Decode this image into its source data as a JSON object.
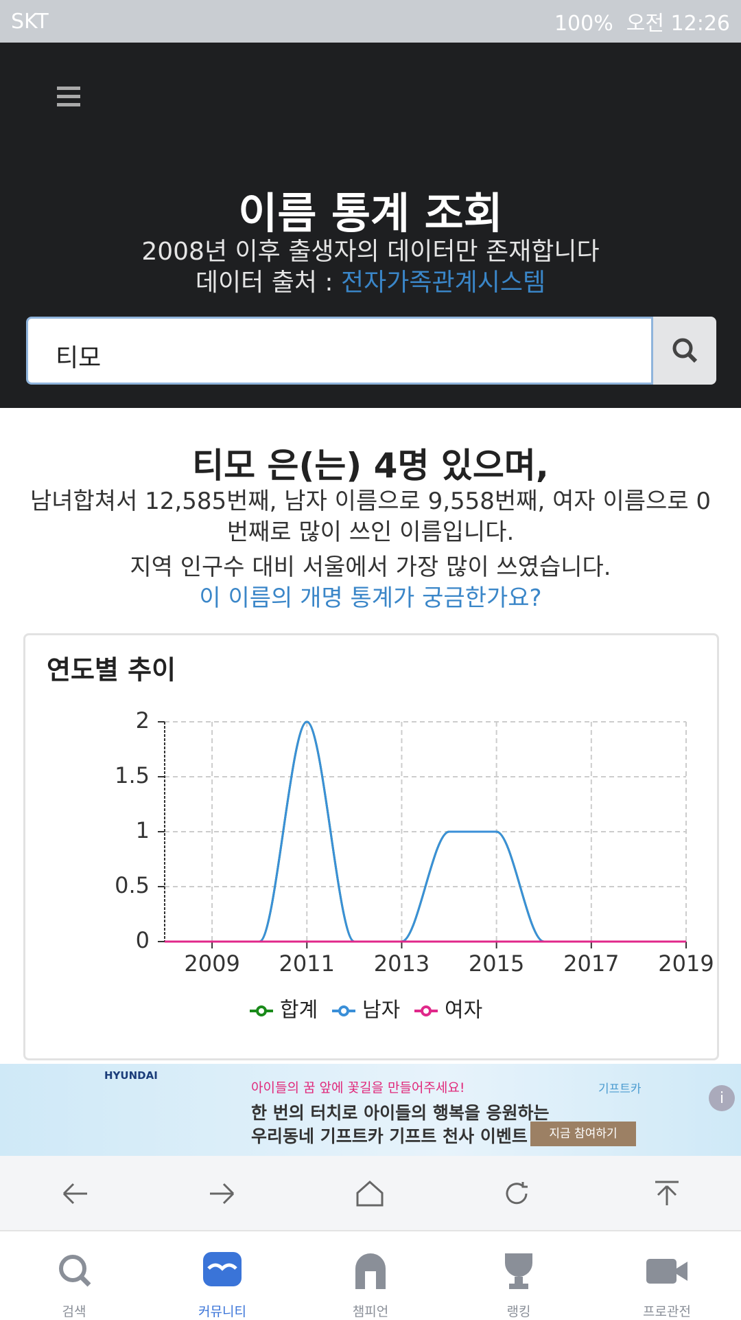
{
  "status_bar": {
    "carrier": "SKT",
    "battery": "100%",
    "time": "오전 12:26"
  },
  "header": {
    "title": "이름 통계 조회",
    "subtitle": "2008년 이후 출생자의 데이터만 존재합니다",
    "source_label": "데이터 출처 :",
    "source_link": "전자가족관계시스템"
  },
  "search": {
    "value": "티모"
  },
  "result": {
    "headline": "티모 은(는) 4명 있으며,",
    "rank_text": "남녀합쳐서 12,585번째, 남자 이름으로 9,558번째, 여자 이름으로 0번째로 많이 쓰인 이름입니다.",
    "region_text": "지역 인구수 대비 서울에서 가장 많이 쓰였습니다.",
    "link": "이 이름의 개명 통계가 궁금한가요?"
  },
  "chart_data": {
    "type": "line",
    "title": "연도별 추이",
    "x": [
      2008,
      2009,
      2010,
      2011,
      2012,
      2013,
      2014,
      2015,
      2016,
      2017,
      2018,
      2019
    ],
    "series": [
      {
        "name": "합계",
        "color": "#1a8a1a",
        "values": [
          0,
          0,
          0,
          2,
          0,
          0,
          1,
          1,
          0,
          0,
          0,
          0
        ]
      },
      {
        "name": "남자",
        "color": "#3a8fd8",
        "values": [
          0,
          0,
          0,
          2,
          0,
          0,
          1,
          1,
          0,
          0,
          0,
          0
        ]
      },
      {
        "name": "여자",
        "color": "#e0288a",
        "values": [
          0,
          0,
          0,
          0,
          0,
          0,
          0,
          0,
          0,
          0,
          0,
          0
        ]
      }
    ],
    "xlim": [
      2008,
      2019
    ],
    "ylim": [
      0,
      2
    ],
    "xticks": [
      2009,
      2011,
      2013,
      2015,
      2017,
      2019
    ],
    "yticks": [
      0,
      0.5,
      1,
      1.5,
      2
    ],
    "grid": true
  },
  "ad": {
    "brand": "HYUNDAI",
    "tagline": "아이들의 꿈 앞에 꽃길을 만들어주세요!",
    "line1": "한 번의 터치로 아이들의 행복을 응원하는",
    "line2": "우리동네 기프트카 기프트 천사 이벤트",
    "button": "지금 참여하기",
    "badge": "기프트카"
  },
  "tabs": [
    "검색",
    "커뮤니티",
    "챔피언",
    "랭킹",
    "프로관전"
  ]
}
